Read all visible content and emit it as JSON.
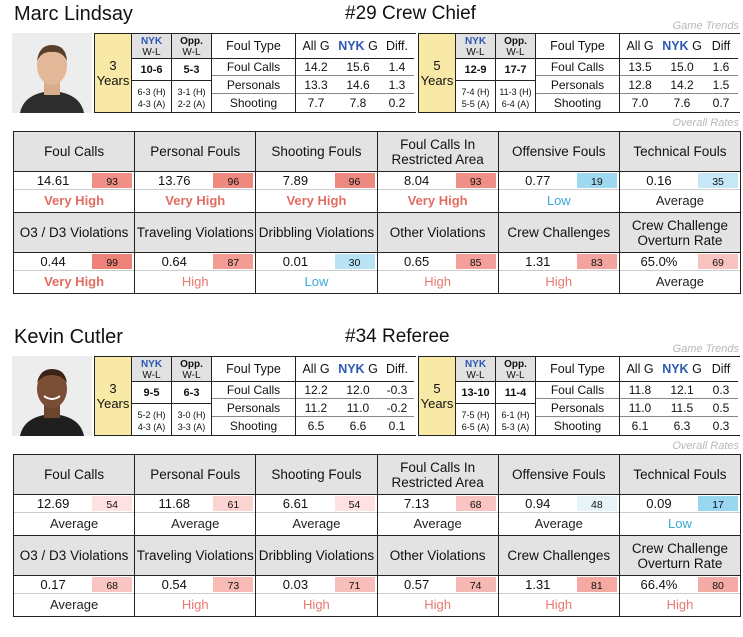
{
  "referees": [
    {
      "name": "Marc Lindsay",
      "role": "#29 Crew Chief",
      "trends_label": "Game Trends",
      "overall_label": "Overall Rates",
      "photo": "referee-headshot",
      "periods": [
        {
          "years_num": "3",
          "years_word": "Years",
          "nyk_hdr": "NYK",
          "opp_hdr": "Opp.",
          "wl": "W-L",
          "nyk_total": "10-6",
          "opp_total": "5-3",
          "nyk_home": "6-3 (H)",
          "nyk_away": "4-3 (A)",
          "opp_home": "3-1 (H)",
          "opp_away": "2-2 (A)",
          "hdr_type": "Foul Type",
          "hdr_all": "All G",
          "hdr_nyk": "NYK",
          "hdr_nyk_g": " G",
          "hdr_diff": "Diff.",
          "rows": [
            {
              "type": "Foul Calls",
              "all": "14.2",
              "nyk": "15.6",
              "diff": "1.4"
            },
            {
              "type": "Personals",
              "all": "13.3",
              "nyk": "14.6",
              "diff": "1.3"
            },
            {
              "type": "Shooting",
              "all": "7.7",
              "nyk": "7.8",
              "diff": "0.2"
            }
          ]
        },
        {
          "years_num": "5",
          "years_word": "Years",
          "nyk_hdr": "NYK",
          "opp_hdr": "Opp.",
          "wl": "W-L",
          "nyk_total": "12-9",
          "opp_total": "17-7",
          "nyk_home": "7-4 (H)",
          "nyk_away": "5-5 (A)",
          "opp_home": "11-3 (H)",
          "opp_away": "6-4 (A)",
          "hdr_type": "Foul Type",
          "hdr_all": "All G",
          "hdr_nyk": "NYK",
          "hdr_nyk_g": " G",
          "hdr_diff": "Diff",
          "rows": [
            {
              "type": "Foul Calls",
              "all": "13.5",
              "nyk": "15.0",
              "diff": "1.6"
            },
            {
              "type": "Personals",
              "all": "12.8",
              "nyk": "14.2",
              "diff": "1.5"
            },
            {
              "type": "Shooting",
              "all": "7.0",
              "nyk": "7.6",
              "diff": "0.7"
            }
          ]
        }
      ],
      "rates": [
        {
          "label": "Foul Calls",
          "value": "14.61",
          "pct": "93",
          "pct_value": 93,
          "rating": "Very High",
          "level": "vh"
        },
        {
          "label": "Personal Fouls",
          "value": "13.76",
          "pct": "96",
          "pct_value": 96,
          "rating": "Very High",
          "level": "vh"
        },
        {
          "label": "Shooting Fouls",
          "value": "7.89",
          "pct": "96",
          "pct_value": 96,
          "rating": "Very High",
          "level": "vh"
        },
        {
          "label": "Foul Calls In Restricted Area",
          "value": "8.04",
          "pct": "93",
          "pct_value": 93,
          "rating": "Very High",
          "level": "vh"
        },
        {
          "label": "Offensive Fouls",
          "value": "0.77",
          "pct": "19",
          "pct_value": 19,
          "rating": "Low",
          "level": "lo"
        },
        {
          "label": "Technical Fouls",
          "value": "0.16",
          "pct": "35",
          "pct_value": 35,
          "rating": "Average",
          "level": "av"
        },
        {
          "label": "O3 / D3 Violations",
          "value": "0.44",
          "pct": "99",
          "pct_value": 99,
          "rating": "Very High",
          "level": "vh"
        },
        {
          "label": "Traveling Violations",
          "value": "0.64",
          "pct": "87",
          "pct_value": 87,
          "rating": "High",
          "level": "hi"
        },
        {
          "label": "Dribbling Violations",
          "value": "0.01",
          "pct": "30",
          "pct_value": 30,
          "rating": "Low",
          "level": "lo"
        },
        {
          "label": "Other Violations",
          "value": "0.65",
          "pct": "85",
          "pct_value": 85,
          "rating": "High",
          "level": "hi"
        },
        {
          "label": "Crew Challenges",
          "value": "1.31",
          "pct": "83",
          "pct_value": 83,
          "rating": "High",
          "level": "hi"
        },
        {
          "label": "Crew Challenge Overturn Rate",
          "value": "65.0%",
          "pct": "69",
          "pct_value": 69,
          "rating": "Average",
          "level": "av"
        }
      ]
    },
    {
      "name": "Kevin Cutler",
      "role": "#34 Referee",
      "trends_label": "Game Trends",
      "overall_label": "Overall Rates",
      "photo": "referee-headshot",
      "periods": [
        {
          "years_num": "3",
          "years_word": "Years",
          "nyk_hdr": "NYK",
          "opp_hdr": "Opp.",
          "wl": "W-L",
          "nyk_total": "9-5",
          "opp_total": "6-3",
          "nyk_home": "5-2 (H)",
          "nyk_away": "4-3 (A)",
          "opp_home": "3-0 (H)",
          "opp_away": "3-3 (A)",
          "hdr_type": "Foul Type",
          "hdr_all": "All G",
          "hdr_nyk": "NYK",
          "hdr_nyk_g": " G",
          "hdr_diff": "Diff.",
          "rows": [
            {
              "type": "Foul Calls",
              "all": "12.2",
              "nyk": "12.0",
              "diff": "-0.3"
            },
            {
              "type": "Personals",
              "all": "11.2",
              "nyk": "11.0",
              "diff": "-0.2"
            },
            {
              "type": "Shooting",
              "all": "6.5",
              "nyk": "6.6",
              "diff": "0.1"
            }
          ]
        },
        {
          "years_num": "5",
          "years_word": "Years",
          "nyk_hdr": "NYK",
          "opp_hdr": "Opp.",
          "wl": "W-L",
          "nyk_total": "13-10",
          "opp_total": "11-4",
          "nyk_home": "7-5 (H)",
          "nyk_away": "6-5 (A)",
          "opp_home": "6-1 (H)",
          "opp_away": "5-3 (A)",
          "hdr_type": "Foul Type",
          "hdr_all": "All G",
          "hdr_nyk": "NYK",
          "hdr_nyk_g": " G",
          "hdr_diff": "Diff",
          "rows": [
            {
              "type": "Foul Calls",
              "all": "11.8",
              "nyk": "12.1",
              "diff": "0.3"
            },
            {
              "type": "Personals",
              "all": "11.0",
              "nyk": "11.5",
              "diff": "0.5"
            },
            {
              "type": "Shooting",
              "all": "6.1",
              "nyk": "6.3",
              "diff": "0.3"
            }
          ]
        }
      ],
      "rates": [
        {
          "label": "Foul Calls",
          "value": "12.69",
          "pct": "54",
          "pct_value": 54,
          "rating": "Average",
          "level": "av"
        },
        {
          "label": "Personal Fouls",
          "value": "11.68",
          "pct": "61",
          "pct_value": 61,
          "rating": "Average",
          "level": "av"
        },
        {
          "label": "Shooting Fouls",
          "value": "6.61",
          "pct": "54",
          "pct_value": 54,
          "rating": "Average",
          "level": "av"
        },
        {
          "label": "Foul Calls In Restricted Area",
          "value": "7.13",
          "pct": "68",
          "pct_value": 68,
          "rating": "Average",
          "level": "av"
        },
        {
          "label": "Offensive Fouls",
          "value": "0.94",
          "pct": "48",
          "pct_value": 48,
          "rating": "Average",
          "level": "av"
        },
        {
          "label": "Technical Fouls",
          "value": "0.09",
          "pct": "17",
          "pct_value": 17,
          "rating": "Low",
          "level": "lo"
        },
        {
          "label": "O3 / D3 Violations",
          "value": "0.17",
          "pct": "68",
          "pct_value": 68,
          "rating": "Average",
          "level": "av"
        },
        {
          "label": "Traveling Violations",
          "value": "0.54",
          "pct": "73",
          "pct_value": 73,
          "rating": "High",
          "level": "hi"
        },
        {
          "label": "Dribbling Violations",
          "value": "0.03",
          "pct": "71",
          "pct_value": 71,
          "rating": "High",
          "level": "hi"
        },
        {
          "label": "Other Violations",
          "value": "0.57",
          "pct": "74",
          "pct_value": 74,
          "rating": "High",
          "level": "hi"
        },
        {
          "label": "Crew Challenges",
          "value": "1.31",
          "pct": "81",
          "pct_value": 81,
          "rating": "High",
          "level": "hi"
        },
        {
          "label": "Crew Challenge Overturn Rate",
          "value": "66.4%",
          "pct": "80",
          "pct_value": 80,
          "rating": "High",
          "level": "hi"
        }
      ]
    }
  ]
}
